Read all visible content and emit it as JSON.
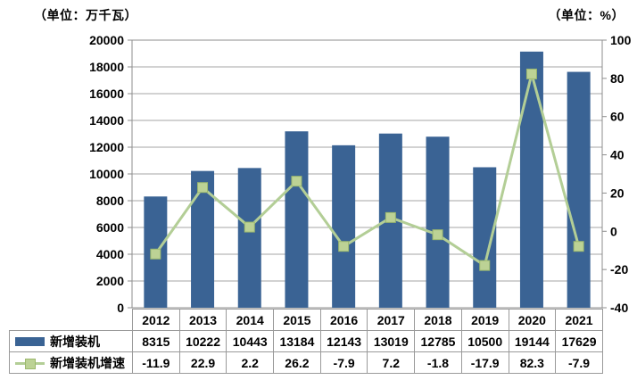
{
  "chart": {
    "left_unit": "（单位：万千瓦）",
    "right_unit": "（单位：%）"
  },
  "chart_data": {
    "type": "combo",
    "categories": [
      "2012",
      "2013",
      "2014",
      "2015",
      "2016",
      "2017",
      "2018",
      "2019",
      "2020",
      "2021"
    ],
    "series": [
      {
        "name": "新增装机",
        "type": "bar",
        "axis": "left",
        "color": "#3A6394",
        "values": [
          8315,
          10222,
          10443,
          13184,
          12143,
          13019,
          12785,
          10500,
          19144,
          17629
        ]
      },
      {
        "name": "新增装机增速",
        "type": "line",
        "axis": "right",
        "color": "#B3CE96",
        "marker_fill": "#BCD295",
        "marker_stroke": "#9CB96E",
        "values": [
          -11.9,
          22.9,
          2.2,
          26.2,
          -7.9,
          7.2,
          -1.8,
          -17.9,
          82.3,
          -7.9
        ]
      }
    ],
    "left_axis": {
      "unit": "（单位：万千瓦）",
      "min": 0,
      "max": 20000,
      "step": 2000
    },
    "right_axis": {
      "unit": "（单位：%）",
      "min": -40,
      "max": 100,
      "step": 20
    },
    "grid": true,
    "legend_position": "table-left",
    "colors": {
      "grid": "#A6A6A6",
      "axis": "#8C8C8C",
      "table_border": "#9A9A9A",
      "text": "#000000",
      "background": "#FFFFFF"
    }
  }
}
